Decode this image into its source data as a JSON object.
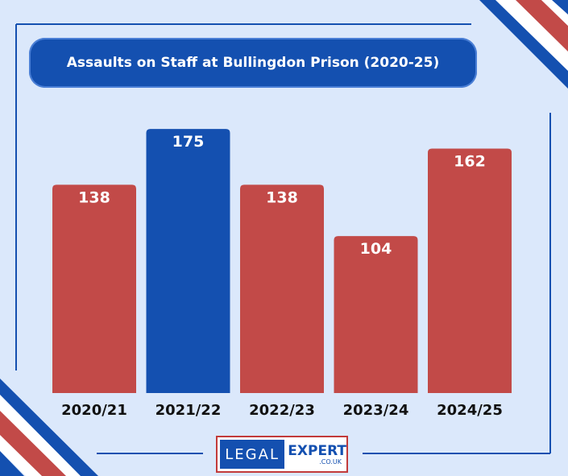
{
  "title": "Assaults on Staff at Bullingdon Prison (2020-25)",
  "colors": {
    "background": "#dbe8fb",
    "red": "#c24a48",
    "blue": "#1450b0",
    "title_bg": "#1450b0"
  },
  "logo": {
    "left_text": "LEGAL",
    "right_text": "EXPERT",
    "sub_text": ".CO.UK"
  },
  "chart_data": {
    "type": "bar",
    "categories": [
      "2020/21",
      "2021/22",
      "2022/23",
      "2023/24",
      "2024/25"
    ],
    "values": [
      138,
      175,
      138,
      104,
      162
    ],
    "bar_colors": [
      "#c24a48",
      "#1450b0",
      "#c24a48",
      "#c24a48",
      "#c24a48"
    ],
    "title": "Assaults on Staff at Bullingdon Prison (2020-25)",
    "xlabel": "",
    "ylabel": "",
    "ylim": [
      0,
      190
    ],
    "grid": false,
    "data_labels": true
  }
}
